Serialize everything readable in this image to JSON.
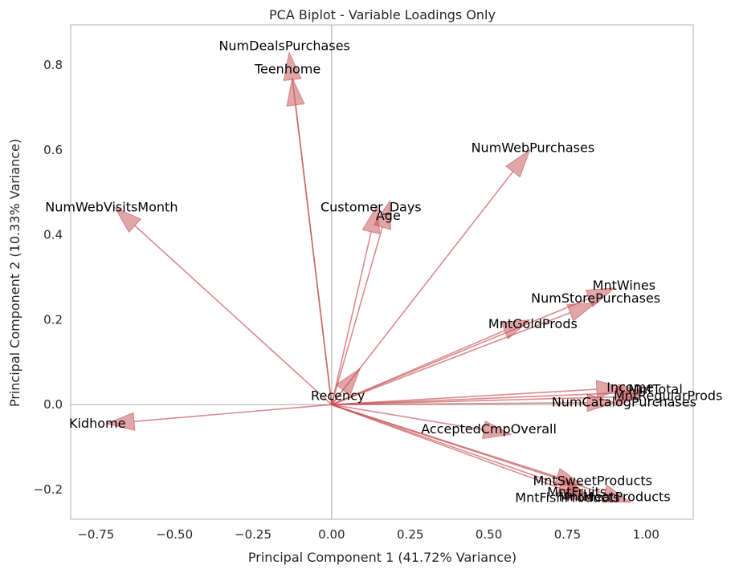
{
  "chart_data": {
    "type": "biplot",
    "title": "PCA Biplot - Variable Loadings Only",
    "xlabel": "Principal Component 1 (41.72% Variance)",
    "ylabel": "Principal Component 2 (10.33% Variance)",
    "xlim": [
      -0.83,
      1.15
    ],
    "ylim": [
      -0.27,
      0.895
    ],
    "x_ticks": [
      -0.75,
      -0.5,
      -0.25,
      0.0,
      0.25,
      0.5,
      0.75,
      1.0
    ],
    "x_tick_labels": [
      "−0.75",
      "−0.50",
      "−0.25",
      "0.00",
      "0.25",
      "0.50",
      "0.75",
      "1.00"
    ],
    "y_ticks": [
      -0.2,
      0.0,
      0.2,
      0.4,
      0.6,
      0.8
    ],
    "y_tick_labels": [
      "−0.2",
      "0.0",
      "0.2",
      "0.4",
      "0.6",
      "0.8"
    ],
    "grid": false,
    "arrow_color": "#c44e52",
    "loadings": [
      {
        "name": "NumDealsPurchases",
        "x": -0.135,
        "y": 0.83,
        "lx": -0.15,
        "ly": 0.845
      },
      {
        "name": "Teenhome",
        "x": -0.125,
        "y": 0.77,
        "lx": -0.14,
        "ly": 0.79
      },
      {
        "name": "NumWebPurchases",
        "x": 0.63,
        "y": 0.6,
        "lx": 0.64,
        "ly": 0.605
      },
      {
        "name": "NumWebVisitsMonth",
        "x": -0.69,
        "y": 0.465,
        "lx": -0.7,
        "ly": 0.465
      },
      {
        "name": "Customer_Days",
        "x": 0.145,
        "y": 0.47,
        "lx": 0.125,
        "ly": 0.465
      },
      {
        "name": "Age",
        "x": 0.185,
        "y": 0.48,
        "lx": 0.18,
        "ly": 0.445
      },
      {
        "name": "MntWines",
        "x": 0.9,
        "y": 0.275,
        "lx": 0.93,
        "ly": 0.28
      },
      {
        "name": "NumStorePurchases",
        "x": 0.84,
        "y": 0.24,
        "lx": 0.84,
        "ly": 0.25
      },
      {
        "name": "MntGoldProds",
        "x": 0.63,
        "y": 0.2,
        "lx": 0.64,
        "ly": 0.19
      },
      {
        "name": "Recency",
        "x": 0.09,
        "y": 0.085,
        "lx": 0.02,
        "ly": 0.02
      },
      {
        "name": "Income",
        "x": 0.93,
        "y": 0.04,
        "lx": 0.95,
        "ly": 0.04
      },
      {
        "name": "MntTotal",
        "x": 1.0,
        "y": 0.03,
        "lx": 1.03,
        "ly": 0.035
      },
      {
        "name": "MntRegularProds",
        "x": 0.99,
        "y": 0.02,
        "lx": 1.07,
        "ly": 0.02
      },
      {
        "name": "NumCatalogPurchases",
        "x": 0.9,
        "y": 0.005,
        "lx": 0.93,
        "ly": 0.005
      },
      {
        "name": "Kidhome",
        "x": -0.715,
        "y": -0.045,
        "lx": -0.745,
        "ly": -0.045
      },
      {
        "name": "AcceptedCmpOverall",
        "x": 0.57,
        "y": -0.07,
        "lx": 0.5,
        "ly": -0.058
      },
      {
        "name": "MntSweetProducts",
        "x": 0.8,
        "y": -0.19,
        "lx": 0.83,
        "ly": -0.18
      },
      {
        "name": "MntFruits",
        "x": 0.81,
        "y": -0.21,
        "lx": 0.78,
        "ly": -0.207
      },
      {
        "name": "MntFishProducts",
        "x": 0.83,
        "y": -0.225,
        "lx": 0.75,
        "ly": -0.22
      },
      {
        "name": "MntMeatProducts",
        "x": 0.95,
        "y": -0.23,
        "lx": 0.9,
        "ly": -0.218
      }
    ]
  }
}
